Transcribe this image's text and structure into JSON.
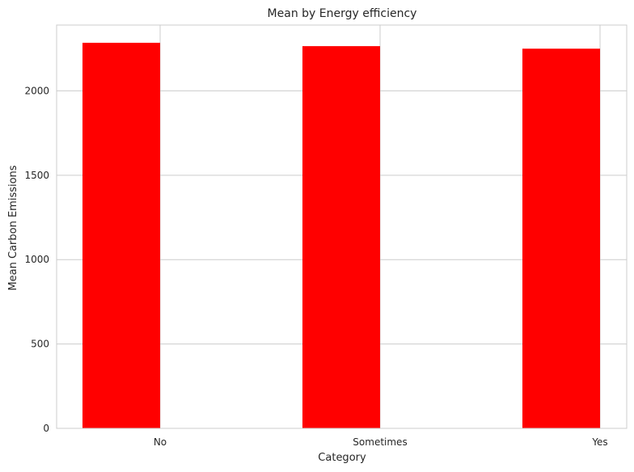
{
  "chart_data": {
    "type": "bar",
    "title": "Mean by Energy efficiency",
    "xlabel": "Category",
    "ylabel": "Mean Carbon Emissions",
    "categories": [
      "No",
      "Sometimes",
      "Yes"
    ],
    "values": [
      2285,
      2265,
      2250
    ],
    "ylim": [
      0,
      2390
    ],
    "yticks": [
      0,
      500,
      1000,
      1500,
      2000
    ],
    "bar_color": "#ff0000",
    "grid": true,
    "grid_color": "#cccccc",
    "background": "#ffffff"
  }
}
